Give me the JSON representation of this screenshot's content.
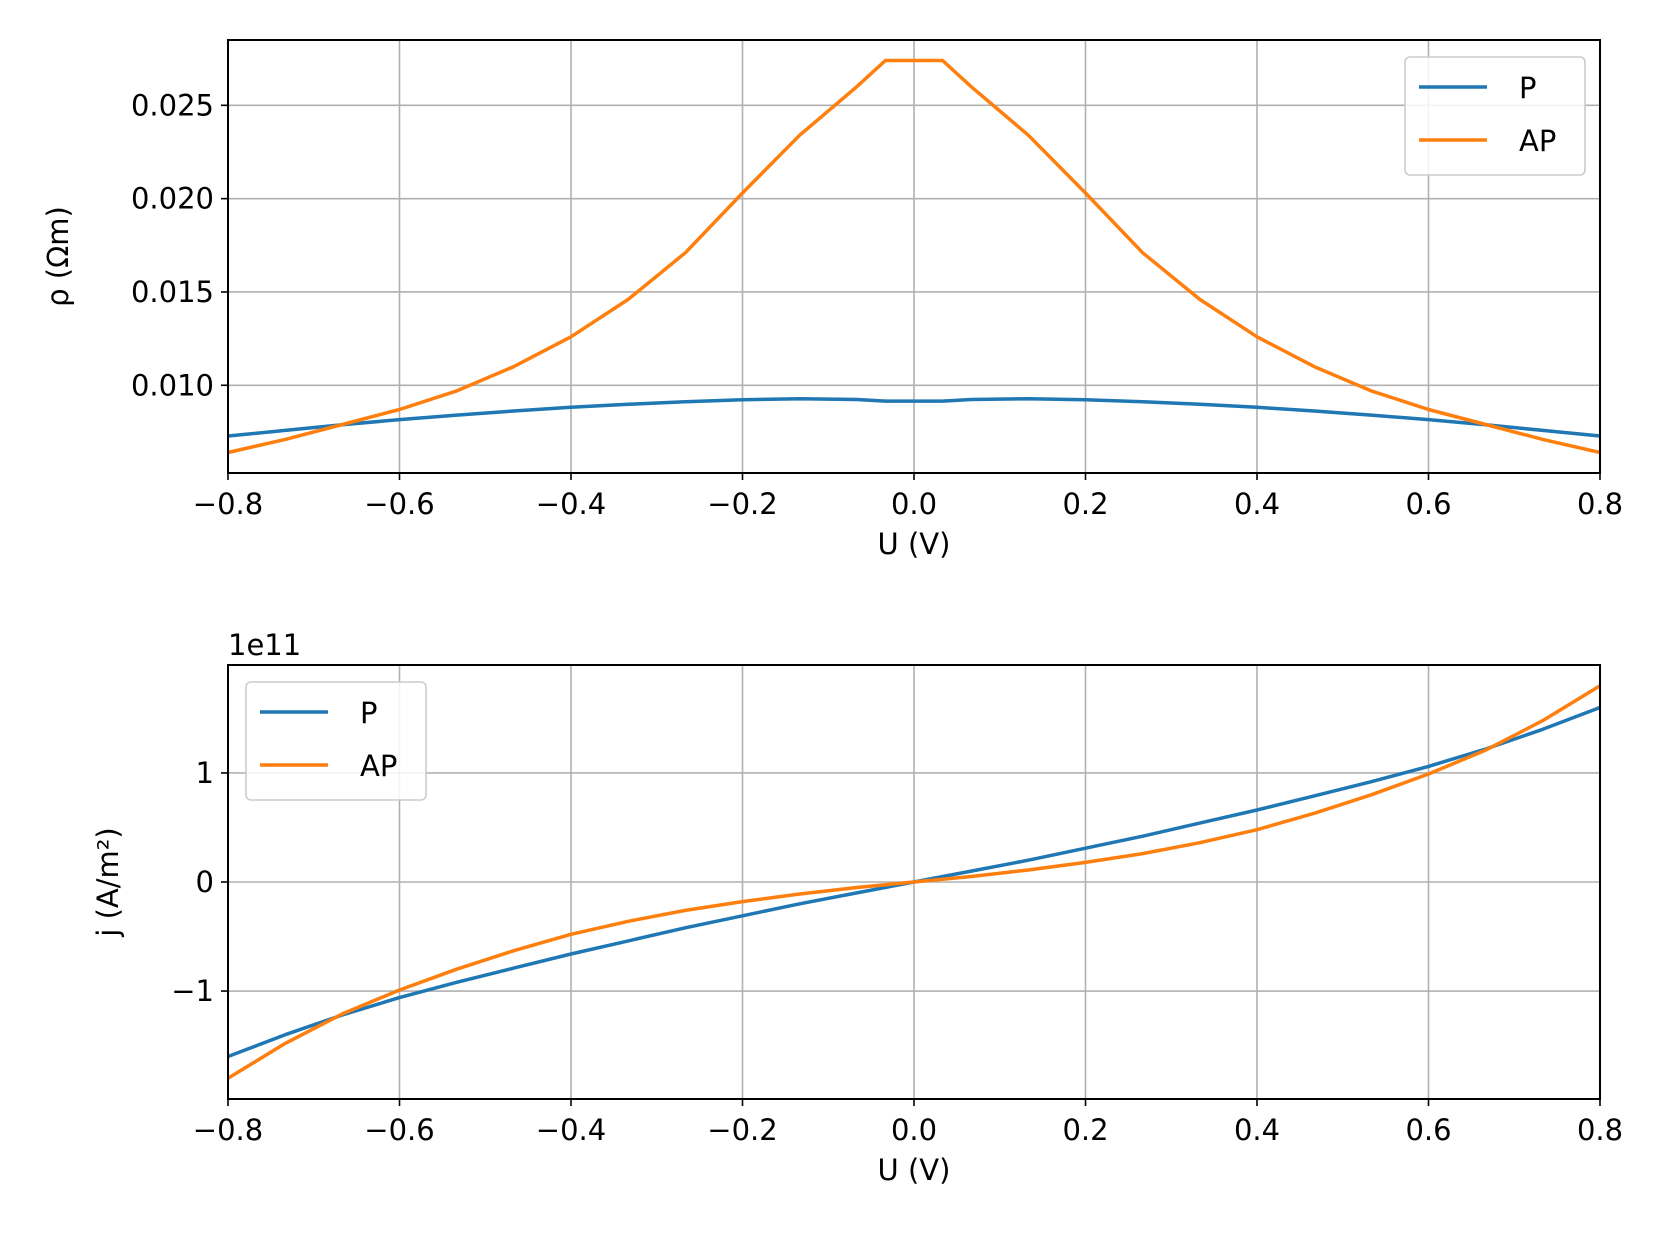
{
  "chart_data": [
    {
      "type": "line",
      "xlabel": "U (V)",
      "ylabel": "ρ (Ωm)",
      "xlim": [
        -0.8,
        0.8
      ],
      "ylim": [
        0.0053,
        0.0285
      ],
      "xticks": [
        -0.8,
        -0.6,
        -0.4,
        -0.2,
        0.0,
        0.2,
        0.4,
        0.6,
        0.8
      ],
      "xtick_labels": [
        "−0.8",
        "−0.6",
        "−0.4",
        "−0.2",
        "0.0",
        "0.2",
        "0.4",
        "0.6",
        "0.8"
      ],
      "yticks": [
        0.01,
        0.015,
        0.02,
        0.025
      ],
      "ytick_labels": [
        "0.010",
        "0.015",
        "0.020",
        "0.025"
      ],
      "offset_text": "",
      "grid": true,
      "legend": {
        "position": "upper right",
        "entries": [
          "P",
          "AP"
        ]
      },
      "series": [
        {
          "name": "P",
          "color": "#1f77b4",
          "x": [
            -0.8,
            -0.7333,
            -0.6667,
            -0.6,
            -0.5333,
            -0.4667,
            -0.4,
            -0.3333,
            -0.2667,
            -0.2,
            -0.1333,
            -0.0667,
            -0.0333,
            0.0333,
            0.0667,
            0.1333,
            0.2,
            0.2667,
            0.3333,
            0.4,
            0.4667,
            0.5333,
            0.6,
            0.6667,
            0.7333,
            0.8
          ],
          "y": [
            0.00728,
            0.00758,
            0.00788,
            0.00816,
            0.0084,
            0.00862,
            0.00882,
            0.00898,
            0.00912,
            0.00922,
            0.00928,
            0.00924,
            0.00915,
            0.00915,
            0.00924,
            0.00928,
            0.00922,
            0.00912,
            0.00898,
            0.00882,
            0.00862,
            0.0084,
            0.00816,
            0.00788,
            0.00758,
            0.00728
          ]
        },
        {
          "name": "AP",
          "color": "#ff7f0e",
          "x": [
            -0.8,
            -0.7333,
            -0.6667,
            -0.6,
            -0.5333,
            -0.4667,
            -0.4,
            -0.3333,
            -0.2667,
            -0.2,
            -0.1333,
            -0.0667,
            -0.0333,
            0.0333,
            0.0667,
            0.1333,
            0.2,
            0.2667,
            0.3333,
            0.4,
            0.4667,
            0.5333,
            0.6,
            0.6667,
            0.7333,
            0.8
          ],
          "y": [
            0.0064,
            0.0071,
            0.0079,
            0.0087,
            0.0097,
            0.011,
            0.0126,
            0.0146,
            0.0171,
            0.0203,
            0.0234,
            0.026,
            0.0274,
            0.0274,
            0.026,
            0.0234,
            0.0203,
            0.0171,
            0.0146,
            0.0126,
            0.011,
            0.0097,
            0.0087,
            0.0079,
            0.0071,
            0.0064
          ]
        }
      ]
    },
    {
      "type": "line",
      "xlabel": "U (V)",
      "ylabel": "j (A/m²)",
      "xlim": [
        -0.8,
        0.8
      ],
      "ylim": [
        -199000000000.0,
        199000000000.0
      ],
      "xticks": [
        -0.8,
        -0.6,
        -0.4,
        -0.2,
        0.0,
        0.2,
        0.4,
        0.6,
        0.8
      ],
      "xtick_labels": [
        "−0.8",
        "−0.6",
        "−0.4",
        "−0.2",
        "0.0",
        "0.2",
        "0.4",
        "0.6",
        "0.8"
      ],
      "yticks": [
        -100000000000.0,
        0,
        100000000000.0
      ],
      "ytick_labels": [
        "−1",
        "0",
        "1"
      ],
      "offset_text": "1e11",
      "grid": true,
      "legend": {
        "position": "upper left",
        "entries": [
          "P",
          "AP"
        ]
      },
      "series": [
        {
          "name": "P",
          "color": "#1f77b4",
          "x": [
            -0.8,
            -0.7333,
            -0.6667,
            -0.6,
            -0.5333,
            -0.4667,
            -0.4,
            -0.3333,
            -0.2667,
            -0.2,
            -0.1333,
            -0.0667,
            0.0,
            0.0667,
            0.1333,
            0.2,
            0.2667,
            0.3333,
            0.4,
            0.4667,
            0.5333,
            0.6,
            0.6667,
            0.7333,
            0.8
          ],
          "y": [
            -160000000000.0,
            -140000000000.0,
            -122000000000.0,
            -106000000000.0,
            -92000000000.0,
            -79000000000.0,
            -66000000000.0,
            -54000000000.0,
            -42000000000.0,
            -31000000000.0,
            -20000000000.0,
            -10000000000.0,
            0.0,
            10000000000.0,
            20000000000.0,
            31000000000.0,
            42000000000.0,
            54000000000.0,
            66000000000.0,
            79000000000.0,
            92000000000.0,
            106000000000.0,
            122000000000.0,
            140000000000.0,
            160000000000.0
          ]
        },
        {
          "name": "AP",
          "color": "#ff7f0e",
          "x": [
            -0.8,
            -0.7333,
            -0.6667,
            -0.6,
            -0.5333,
            -0.4667,
            -0.4,
            -0.3333,
            -0.2667,
            -0.2,
            -0.1333,
            -0.0667,
            0.0,
            0.0667,
            0.1333,
            0.2,
            0.2667,
            0.3333,
            0.4,
            0.4667,
            0.5333,
            0.6,
            0.6667,
            0.7333,
            0.8
          ],
          "y": [
            -180000000000.0,
            -148000000000.0,
            -121000000000.0,
            -99000000000.0,
            -80000000000.0,
            -63000000000.0,
            -48000000000.0,
            -36000000000.0,
            -26000000000.0,
            -18000000000.0,
            -11000000000.0,
            -5000000000.0,
            0.0,
            5000000000.0,
            11000000000.0,
            18000000000.0,
            26000000000.0,
            36000000000.0,
            48000000000.0,
            63000000000.0,
            80000000000.0,
            99000000000.0,
            121000000000.0,
            148000000000.0,
            180000000000.0
          ]
        }
      ]
    }
  ]
}
